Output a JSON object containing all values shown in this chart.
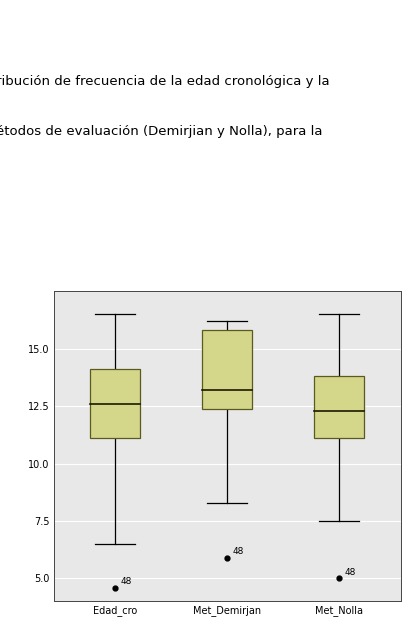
{
  "categories": [
    "Edad_cro",
    "Met_Demirjan",
    "Met_Nolla"
  ],
  "box_data": {
    "Edad_cro": {
      "whislo": 6.5,
      "q1": 11.1,
      "med": 12.6,
      "q3": 14.1,
      "whishi": 16.5,
      "fliers": [
        4.6
      ]
    },
    "Met_Demirjan": {
      "whislo": 8.3,
      "q1": 12.4,
      "med": 13.2,
      "q3": 15.8,
      "whishi": 16.2,
      "fliers": [
        5.9
      ]
    },
    "Met_Nolla": {
      "whislo": 7.5,
      "q1": 11.1,
      "med": 12.3,
      "q3": 13.8,
      "whishi": 16.5,
      "fliers": [
        5.0
      ]
    }
  },
  "outlier_labels": {
    "Edad_cro": "48",
    "Met_Demirjan": "48",
    "Met_Nolla": "48"
  },
  "box_color": "#d4d68a",
  "box_edgecolor": "#5a5a20",
  "median_color": "#1a1a00",
  "whisker_color": "#000000",
  "flier_color": "#000000",
  "background_color": "#e8e8e8",
  "ylim": [
    4.0,
    17.5
  ],
  "yticks": [
    5.0,
    7.5,
    10.0,
    12.5,
    15.0
  ],
  "title_line1": "ribución de frecuencia de la edad cronológica y la",
  "title_line2": "étodos de evaluación (Demirjian y Nolla), para la",
  "axis_fontsize": 7,
  "tick_fontsize": 7,
  "title_fontsize": 9.5,
  "box_width": 0.45
}
